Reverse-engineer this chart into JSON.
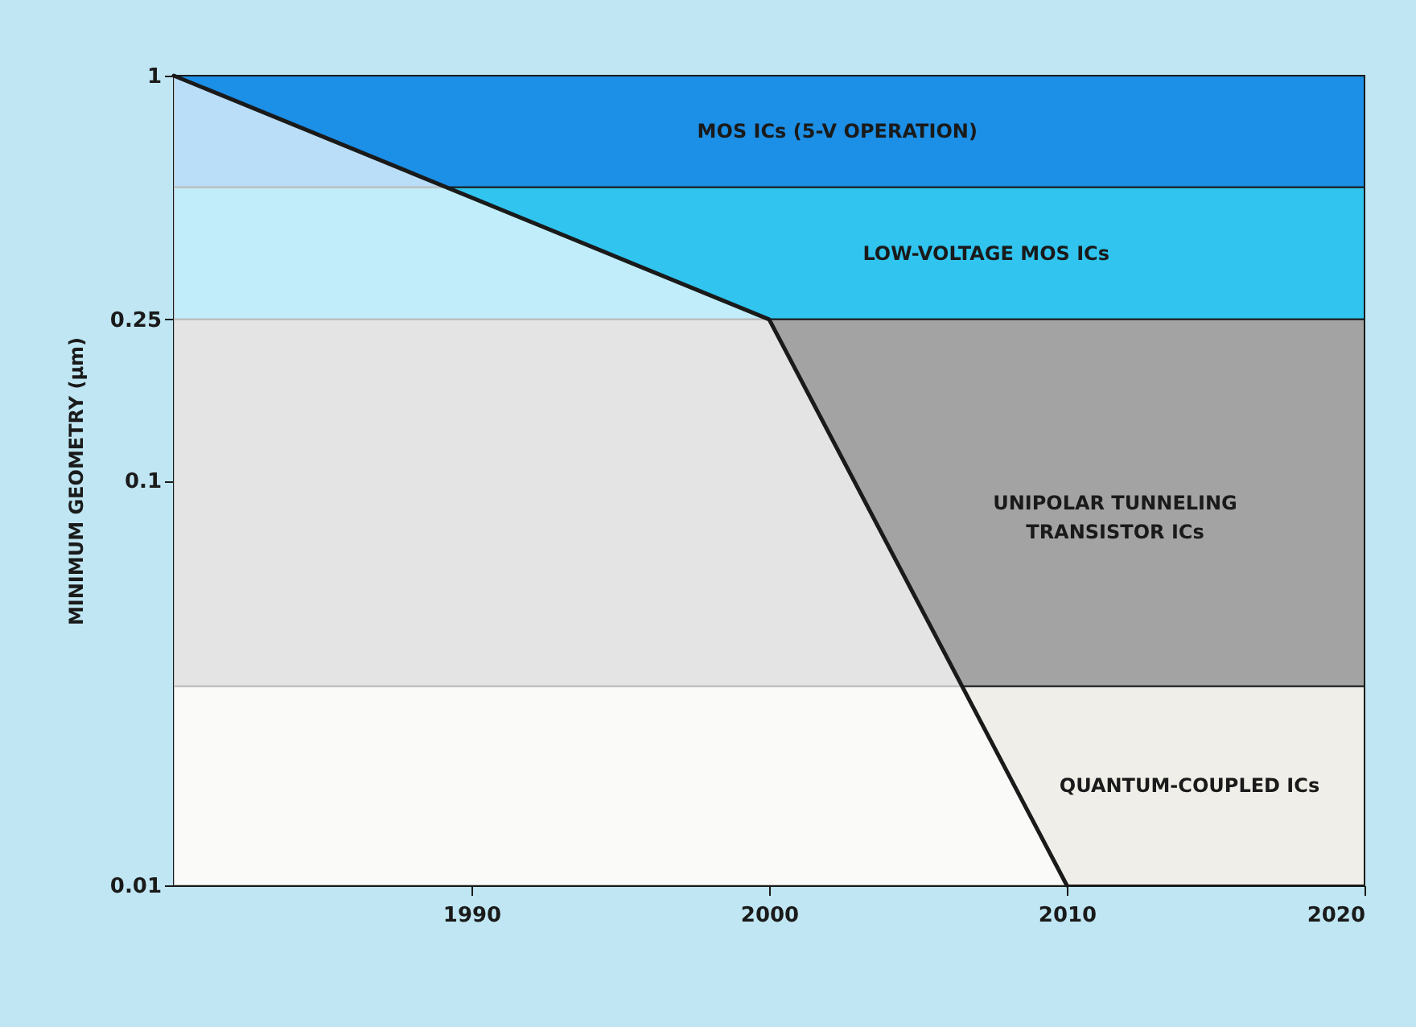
{
  "chart_data": {
    "type": "line",
    "ylabel": "MINIMUM GEOMETRY (μm)",
    "x": [
      1980,
      2000,
      2010
    ],
    "series": [
      {
        "type": "area",
        "color": "#ffffff",
        "values": [
          1,
          0.25,
          0.01
        ]
      }
    ],
    "log": "y",
    "xlim": [
      1980,
      2020
    ],
    "xticks": [
      1990,
      2000,
      2010,
      2020
    ],
    "ylim": [
      0.01,
      1
    ],
    "yticks": [
      1,
      0.25,
      0.1,
      0.01
    ],
    "bands": [
      {
        "axis": "y",
        "from": 0.53,
        "to": 1,
        "label": "MOS ICs (5-V OPERATION)",
        "color": "#1c8fe6"
      },
      {
        "axis": "y",
        "from": 0.25,
        "to": 0.53,
        "label": "LOW-VOLTAGE MOS ICs",
        "color": "#30c4ef"
      },
      {
        "axis": "y",
        "from": 0.031,
        "to": 0.25,
        "label": "UNIPOLAR TUNNELING TRANSISTOR ICs",
        "color": "#a3a3a3"
      },
      {
        "axis": "y",
        "from": 0.01,
        "to": 0.031,
        "label": "QUANTUM-COUPLED ICs",
        "color": "#efeee8"
      }
    ]
  }
}
